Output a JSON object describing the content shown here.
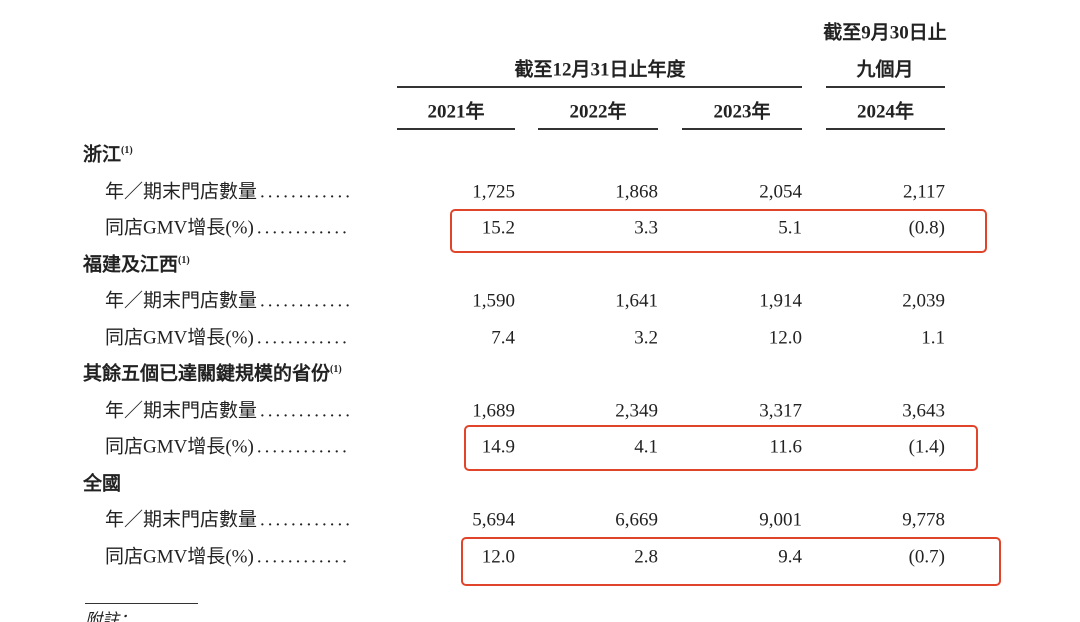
{
  "header": {
    "group_full_year": "截至12月31日止年度",
    "group_nine_months": [
      "截至9月30日止",
      "九個月"
    ],
    "columns": [
      "2021年",
      "2022年",
      "2023年",
      "2024年"
    ]
  },
  "sections": [
    {
      "title": "浙江",
      "note": "(1)",
      "rows": [
        {
          "label": "年／期末門店數量",
          "leader": "............",
          "values": [
            "1,725",
            "1,868",
            "2,054",
            "2,117"
          ]
        },
        {
          "label": "同店GMV增長(%)",
          "leader": "............",
          "values": [
            "15.2",
            "3.3",
            "5.1",
            "(0.8)"
          ]
        }
      ]
    },
    {
      "title": "福建及江西",
      "note": "(1)",
      "rows": [
        {
          "label": "年／期末門店數量",
          "leader": "............",
          "values": [
            "1,590",
            "1,641",
            "1,914",
            "2,039"
          ]
        },
        {
          "label": "同店GMV增長(%)",
          "leader": "............",
          "values": [
            "7.4",
            "3.2",
            "12.0",
            "1.1"
          ]
        }
      ]
    },
    {
      "title": "其餘五個已達關鍵規模的省份",
      "note": "(1)",
      "rows": [
        {
          "label": "年／期末門店數量",
          "leader": "............",
          "values": [
            "1,689",
            "2,349",
            "3,317",
            "3,643"
          ]
        },
        {
          "label": "同店GMV增長(%)",
          "leader": "............",
          "values": [
            "14.9",
            "4.1",
            "11.6",
            "(1.4)"
          ]
        }
      ]
    },
    {
      "title": "全國",
      "note": "",
      "rows": [
        {
          "label": "年／期末門店數量",
          "leader": "............",
          "values": [
            "5,694",
            "6,669",
            "9,001",
            "9,778"
          ]
        },
        {
          "label": "同店GMV增長(%)",
          "leader": "............",
          "values": [
            "12.0",
            "2.8",
            "9.4",
            "(0.7)"
          ]
        }
      ]
    }
  ],
  "footer": {
    "note_heading": "附註："
  }
}
